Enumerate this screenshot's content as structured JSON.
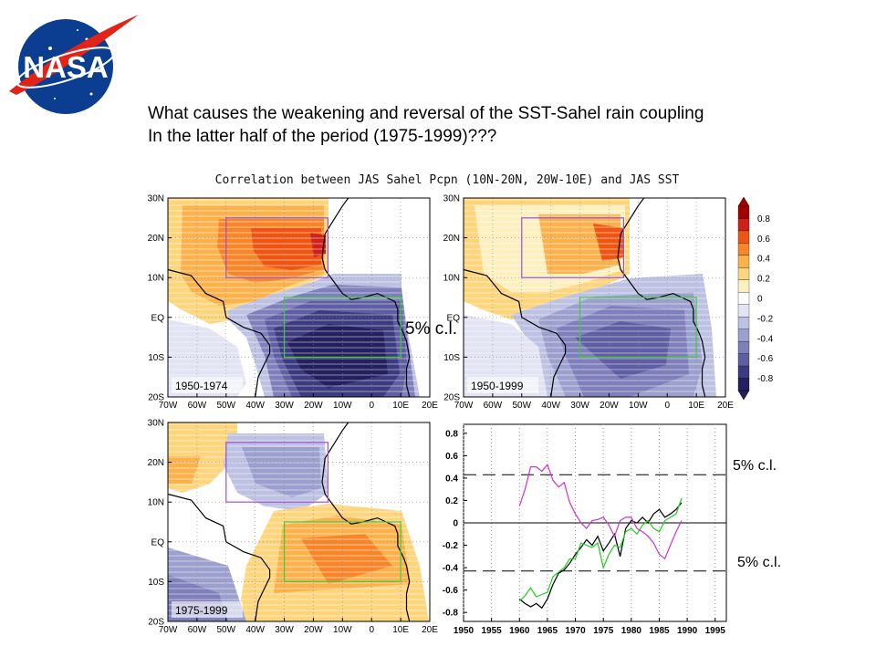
{
  "header": {
    "logo_text": "NASA",
    "question_line1": "What causes the weakening and reversal of the SST-Sahel rain coupling",
    "question_line2": "In the latter half of the period (1975-1999)???"
  },
  "figure": {
    "title": "Correlation between JAS Sahel Pcpn (10N-20N, 20W-10E) and JAS SST",
    "map_lat_ticks": [
      "30N",
      "20N",
      "10N",
      "EQ",
      "10S",
      "20S"
    ],
    "map_lon_ticks": [
      "70W",
      "60W",
      "50W",
      "40W",
      "30W",
      "20W",
      "10W",
      "0",
      "10E",
      "20E"
    ],
    "panels": [
      {
        "label": "1950-1974"
      },
      {
        "label": "1950-1999"
      },
      {
        "label": "1975-1999"
      }
    ],
    "colorbar": {
      "ticks": [
        "0.8",
        "0.6",
        "0.4",
        "0.2",
        "0",
        "-0.2",
        "-0.4",
        "-0.6",
        "-0.8"
      ],
      "colors": [
        "#a50000",
        "#d0201a",
        "#ee5512",
        "#f7862a",
        "#fab24d",
        "#fdd57c",
        "#fdf0c0",
        "#ffffff",
        "#e2e4f3",
        "#bec2e2",
        "#9ca0cf",
        "#7e7fbb",
        "#5e5ea2",
        "#3c3b80",
        "#241f5e"
      ]
    },
    "box_colors": {
      "sahel_box": "#a050d0",
      "atlantic_box": "#40cc40"
    }
  },
  "notes": {
    "ci_top_map": "5% c.l.",
    "ci_upper": "5% c.l.",
    "ci_lower": "5% c.l."
  },
  "chart_data": {
    "type": "line",
    "title": "",
    "xlabel": "",
    "ylabel": "",
    "x_ticks": [
      "1950",
      "1955",
      "1960",
      "1965",
      "1970",
      "1975",
      "1980",
      "1985",
      "1990",
      "1995"
    ],
    "y_ticks": [
      "0.8",
      "0.6",
      "0.4",
      "0.2",
      "0",
      "-0.2",
      "-0.4",
      "-0.6",
      "-0.8"
    ],
    "xlim": [
      1950,
      1997
    ],
    "ylim": [
      -0.88,
      0.88
    ],
    "grid": true,
    "confidence_level": [
      0.43,
      -0.43
    ],
    "x": [
      1960,
      1961,
      1962,
      1963,
      1964,
      1965,
      1966,
      1967,
      1968,
      1969,
      1970,
      1971,
      1972,
      1973,
      1974,
      1975,
      1976,
      1977,
      1978,
      1979,
      1980,
      1981,
      1982,
      1983,
      1984,
      1985,
      1986,
      1987,
      1988,
      1989
    ],
    "series": [
      {
        "color": "#000000",
        "values": [
          -0.68,
          -0.72,
          -0.75,
          -0.72,
          -0.76,
          -0.68,
          -0.55,
          -0.45,
          -0.42,
          -0.36,
          -0.28,
          -0.22,
          -0.15,
          -0.2,
          -0.12,
          -0.25,
          -0.18,
          -0.1,
          -0.3,
          -0.05,
          0.02,
          0.0,
          0.05,
          0.0,
          0.08,
          0.12,
          0.05,
          0.08,
          0.12,
          0.18
        ]
      },
      {
        "color": "#22cc22",
        "values": [
          -0.7,
          -0.65,
          -0.58,
          -0.66,
          -0.64,
          -0.62,
          -0.48,
          -0.44,
          -0.4,
          -0.32,
          -0.32,
          -0.18,
          -0.2,
          -0.22,
          -0.18,
          -0.4,
          -0.28,
          -0.2,
          -0.22,
          -0.08,
          -0.05,
          -0.1,
          -0.02,
          0.02,
          -0.05,
          -0.08,
          0.02,
          0.05,
          0.08,
          0.22
        ]
      },
      {
        "color": "#cc33cc",
        "values": [
          0.15,
          0.3,
          0.5,
          0.5,
          0.46,
          0.52,
          0.38,
          0.32,
          0.36,
          0.18,
          0.08,
          0.0,
          -0.05,
          0.02,
          0.03,
          0.05,
          -0.02,
          -0.12,
          0.02,
          0.05,
          0.05,
          -0.05,
          -0.08,
          -0.12,
          -0.18,
          -0.28,
          -0.32,
          -0.2,
          -0.08,
          0.02
        ]
      }
    ]
  }
}
